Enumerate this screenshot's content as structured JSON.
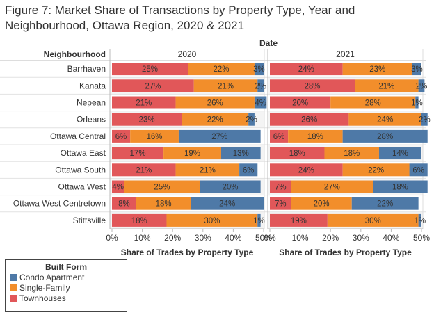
{
  "title": "Figure 7: Market Share of Transactions by Property Type, Year and Neighbourhood, Ottawa Region, 2020 & 2021",
  "colors": {
    "townhouses": "#e15759",
    "single_family": "#f28e2b",
    "condo_apartment": "#4e79a7"
  },
  "legend": {
    "title": "Built Form",
    "items": [
      "Condo Apartment",
      "Single-Family",
      "Townhouses"
    ]
  },
  "chart_data": {
    "type": "bar",
    "orientation": "horizontal",
    "stacked": true,
    "column_header": "Date",
    "row_header": "Neighbourhood",
    "categories": [
      "Barrhaven",
      "Kanata",
      "Nepean",
      "Orleans",
      "Ottawa Central",
      "Ottawa East",
      "Ottawa South",
      "Ottawa West",
      "Ottawa West Centretown",
      "Stittsville"
    ],
    "xlabel": "Share of Trades by Property Type",
    "xlim": [
      0,
      50
    ],
    "xticks": [
      "0%",
      "10%",
      "20%",
      "30%",
      "40%",
      "50%"
    ],
    "panels": [
      {
        "name": "2020",
        "series": [
          {
            "name": "Townhouses",
            "values": [
              25,
              27,
              21,
              23,
              6,
              17,
              21,
              4,
              8,
              18
            ]
          },
          {
            "name": "Single-Family",
            "values": [
              22,
              21,
              26,
              22,
              16,
              19,
              21,
              25,
              18,
              30
            ]
          },
          {
            "name": "Condo Apartment",
            "values": [
              3,
              2,
              4,
              2,
              27,
              13,
              6,
              20,
              24,
              1
            ]
          }
        ]
      },
      {
        "name": "2021",
        "series": [
          {
            "name": "Townhouses",
            "values": [
              24,
              28,
              20,
              26,
              6,
              18,
              24,
              7,
              7,
              19
            ]
          },
          {
            "name": "Single-Family",
            "values": [
              23,
              21,
              28,
              24,
              18,
              18,
              22,
              27,
              20,
              30
            ]
          },
          {
            "name": "Condo Apartment",
            "values": [
              3,
              2,
              1,
              2,
              28,
              14,
              6,
              18,
              22,
              1
            ]
          }
        ]
      }
    ]
  }
}
